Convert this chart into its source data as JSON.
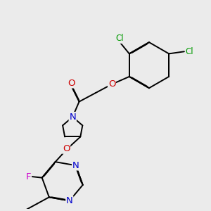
{
  "background_color": "#ebebeb",
  "atom_colors": {
    "C": "#000000",
    "N": "#0000cc",
    "O": "#cc0000",
    "F": "#cc00cc",
    "Cl": "#009900",
    "H": "#000000"
  },
  "bond_color": "#000000",
  "bond_width": 1.4,
  "font_size": 8.5
}
